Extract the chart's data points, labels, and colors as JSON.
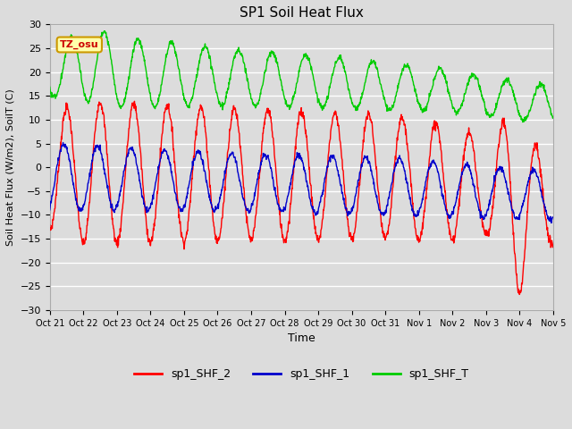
{
  "title": "SP1 Soil Heat Flux",
  "xlabel": "Time",
  "ylabel": "Soil Heat Flux (W/m2), SoilT (C)",
  "ylim": [
    -30,
    30
  ],
  "yticks": [
    -30,
    -25,
    -20,
    -15,
    -10,
    -5,
    0,
    5,
    10,
    15,
    20,
    25,
    30
  ],
  "background_color": "#dcdcdc",
  "plot_bg_color": "#dcdcdc",
  "grid_color": "#ffffff",
  "line_colors": {
    "sp1_SHF_2": "#ff0000",
    "sp1_SHF_1": "#0000cc",
    "sp1_SHF_T": "#00cc00"
  },
  "annotation_text": "TZ_osu",
  "annotation_bg": "#ffffaa",
  "annotation_border": "#cc9900",
  "annotation_text_color": "#cc0000",
  "xtick_labels": [
    "Oct 21",
    "Oct 22",
    "Oct 23",
    "Oct 24",
    "Oct 25",
    "Oct 26",
    "Oct 27",
    "Oct 28",
    "Oct 29",
    "Oct 30",
    "Oct 31",
    "Nov 1",
    "Nov 2",
    "Nov 3",
    "Nov 4",
    "Nov 5"
  ],
  "n_days": 15,
  "samples_per_day": 96
}
